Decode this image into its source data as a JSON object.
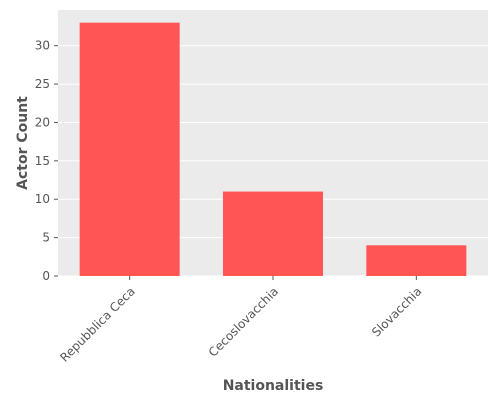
{
  "chart_data": {
    "type": "bar",
    "title": "",
    "xlabel": "Nationalities",
    "ylabel": "Actor Count",
    "categories": [
      "Repubblica Ceca",
      "Cecoslovacchia",
      "Slovacchia"
    ],
    "values": [
      33,
      11,
      4
    ],
    "ylim": [
      0,
      34.65
    ],
    "yticks": [
      0,
      5,
      10,
      15,
      20,
      25,
      30
    ],
    "grid": true,
    "legend": "none",
    "colors": {
      "bar": "#ff5555",
      "plot_background": "#ebebeb",
      "grid": "#ffffff",
      "text": "#555555"
    }
  }
}
